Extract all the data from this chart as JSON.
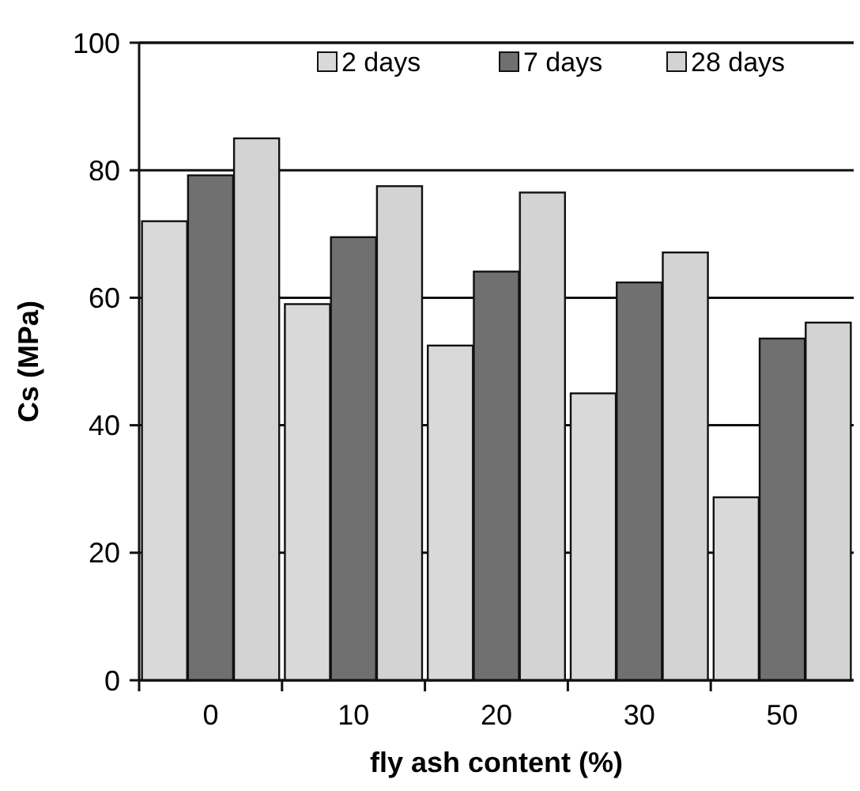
{
  "chart_data": {
    "type": "bar",
    "xlabel": "fly ash content (%)",
    "ylabel": "Cs (MPa)",
    "categories": [
      "0",
      "10",
      "20",
      "30",
      "50"
    ],
    "series": [
      {
        "name": "2 days",
        "color": "#d9d9d9",
        "values": [
          72,
          59,
          52.5,
          45,
          28.7
        ]
      },
      {
        "name": "7 days",
        "color": "#707070",
        "values": [
          79.2,
          69.5,
          64.1,
          62.4,
          53.6
        ]
      },
      {
        "name": "28 days",
        "color": "#d3d3d3",
        "values": [
          85,
          77.5,
          76.5,
          67.1,
          56.1
        ]
      }
    ],
    "ylim": [
      0,
      100
    ],
    "yticks": [
      0,
      20,
      40,
      60,
      80,
      100
    ],
    "grid": "y",
    "legend": "top"
  }
}
